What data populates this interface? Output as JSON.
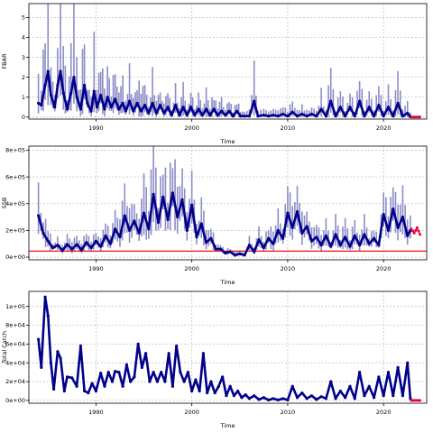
{
  "chart_data": [
    {
      "type": "line",
      "title": "",
      "xlabel": "Time",
      "ylabel": "FBAR",
      "xlim": [
        1983,
        2024.5
      ],
      "ylim": [
        -0.1,
        5.7
      ],
      "xticks": [
        1990,
        2000,
        2010,
        2020
      ],
      "yticks": [
        0,
        1,
        2,
        3,
        4,
        5
      ],
      "ytick_labels": [
        "0",
        "1",
        "2",
        "3",
        "4",
        "5"
      ],
      "grid": true,
      "colors": {
        "line": "#00008b",
        "band": "#8c8cc8",
        "projection": "#e8003a",
        "grid": "#c0c0c0"
      },
      "key_points": [
        [
          1984.0,
          0.7
        ],
        [
          1984.3,
          0.6
        ],
        [
          1984.7,
          1.6
        ],
        [
          1985.0,
          2.3
        ],
        [
          1985.3,
          1.1
        ],
        [
          1985.7,
          0.5
        ],
        [
          1986.0,
          1.6
        ],
        [
          1986.3,
          2.3
        ],
        [
          1986.6,
          1.2
        ],
        [
          1987.0,
          0.4
        ],
        [
          1987.4,
          1.2
        ],
        [
          1987.7,
          2.0
        ],
        [
          1988.0,
          1.0
        ],
        [
          1988.4,
          0.4
        ],
        [
          1988.8,
          1.6
        ],
        [
          1989.1,
          0.7
        ],
        [
          1989.5,
          0.3
        ],
        [
          1989.8,
          1.3
        ],
        [
          1990.1,
          0.5
        ],
        [
          1990.5,
          1.1
        ],
        [
          1990.9,
          0.4
        ],
        [
          1991.2,
          1.0
        ],
        [
          1991.6,
          0.5
        ],
        [
          1992.0,
          0.9
        ],
        [
          1992.4,
          0.4
        ],
        [
          1992.8,
          0.7
        ],
        [
          1993.1,
          0.3
        ],
        [
          1993.5,
          0.8
        ],
        [
          1993.9,
          0.3
        ],
        [
          1994.3,
          0.7
        ],
        [
          1994.7,
          0.3
        ],
        [
          1995.1,
          0.6
        ],
        [
          1995.5,
          0.2
        ],
        [
          1995.9,
          0.7
        ],
        [
          1996.3,
          0.2
        ],
        [
          1996.7,
          0.6
        ],
        [
          1997.1,
          0.2
        ],
        [
          1997.5,
          0.5
        ],
        [
          1997.9,
          0.1
        ],
        [
          1998.3,
          0.6
        ],
        [
          1998.7,
          0.1
        ],
        [
          1999.1,
          0.5
        ],
        [
          1999.5,
          0.1
        ],
        [
          1999.9,
          0.5
        ],
        [
          2000.3,
          0.1
        ],
        [
          2000.7,
          0.4
        ],
        [
          2001.1,
          0.1
        ],
        [
          2001.5,
          0.4
        ],
        [
          2001.9,
          0.1
        ],
        [
          2002.3,
          0.4
        ],
        [
          2002.7,
          0.1
        ],
        [
          2003.1,
          0.3
        ],
        [
          2003.5,
          0.1
        ],
        [
          2003.9,
          0.3
        ],
        [
          2004.3,
          0.05
        ],
        [
          2004.7,
          0.3
        ],
        [
          2005.1,
          0.05
        ],
        [
          2005.5,
          0.05
        ],
        [
          2006.0,
          0.05
        ],
        [
          2006.5,
          0.8
        ],
        [
          2006.9,
          0.05
        ],
        [
          2007.5,
          0.1
        ],
        [
          2008.0,
          0.05
        ],
        [
          2008.5,
          0.1
        ],
        [
          2009.0,
          0.05
        ],
        [
          2009.5,
          0.15
        ],
        [
          2010.0,
          0.05
        ],
        [
          2010.5,
          0.25
        ],
        [
          2011.0,
          0.05
        ],
        [
          2011.5,
          0.15
        ],
        [
          2012.0,
          0.05
        ],
        [
          2012.5,
          0.15
        ],
        [
          2013.0,
          0.05
        ],
        [
          2013.5,
          0.4
        ],
        [
          2014.0,
          0.05
        ],
        [
          2014.5,
          0.8
        ],
        [
          2015.0,
          0.05
        ],
        [
          2015.5,
          0.5
        ],
        [
          2016.0,
          0.05
        ],
        [
          2016.5,
          0.5
        ],
        [
          2017.0,
          0.05
        ],
        [
          2017.5,
          0.8
        ],
        [
          2018.0,
          0.05
        ],
        [
          2018.5,
          0.5
        ],
        [
          2019.0,
          0.05
        ],
        [
          2019.5,
          0.6
        ],
        [
          2020.0,
          0.05
        ],
        [
          2020.5,
          0.5
        ],
        [
          2021.0,
          0.05
        ],
        [
          2021.5,
          0.7
        ],
        [
          2022.0,
          0.05
        ],
        [
          2022.5,
          0.2
        ],
        [
          2022.8,
          0.02
        ]
      ],
      "projection": {
        "x": [
          2022.9,
          2023.8
        ],
        "y": [
          0.0,
          0.0
        ]
      }
    },
    {
      "type": "line",
      "title": "",
      "xlabel": "Time",
      "ylabel": "SSB",
      "xlim": [
        1983,
        2024.5
      ],
      "ylim": [
        -20000,
        830000
      ],
      "xticks": [
        1990,
        2000,
        2010,
        2020
      ],
      "yticks": [
        0,
        200000,
        400000,
        600000,
        800000
      ],
      "ytick_labels": [
        "0e+00",
        "2e+05",
        "4e+05",
        "6e+05",
        "8e+05"
      ],
      "grid": true,
      "reference_line": 45000,
      "colors": {
        "line": "#00008b",
        "band": "#8c8cc8",
        "projection": "#e8003a",
        "reference": "#ee1111",
        "grid": "#c0c0c0"
      },
      "key_points": [
        [
          1984.0,
          310000
        ],
        [
          1984.5,
          180000
        ],
        [
          1985.0,
          120000
        ],
        [
          1985.5,
          70000
        ],
        [
          1986.0,
          90000
        ],
        [
          1986.5,
          50000
        ],
        [
          1987.0,
          95000
        ],
        [
          1987.5,
          60000
        ],
        [
          1988.0,
          95000
        ],
        [
          1988.5,
          55000
        ],
        [
          1989.0,
          110000
        ],
        [
          1989.5,
          70000
        ],
        [
          1990.0,
          120000
        ],
        [
          1990.5,
          80000
        ],
        [
          1991.0,
          160000
        ],
        [
          1991.5,
          100000
        ],
        [
          1992.0,
          210000
        ],
        [
          1992.5,
          150000
        ],
        [
          1993.0,
          310000
        ],
        [
          1993.5,
          200000
        ],
        [
          1994.0,
          270000
        ],
        [
          1994.5,
          180000
        ],
        [
          1995.0,
          330000
        ],
        [
          1995.5,
          210000
        ],
        [
          1996.0,
          470000
        ],
        [
          1996.5,
          260000
        ],
        [
          1997.0,
          450000
        ],
        [
          1997.5,
          280000
        ],
        [
          1998.0,
          480000
        ],
        [
          1998.5,
          300000
        ],
        [
          1999.0,
          430000
        ],
        [
          1999.5,
          200000
        ],
        [
          2000.0,
          390000
        ],
        [
          2000.5,
          150000
        ],
        [
          2001.0,
          250000
        ],
        [
          2001.5,
          110000
        ],
        [
          2002.0,
          140000
        ],
        [
          2002.5,
          60000
        ],
        [
          2003.0,
          60000
        ],
        [
          2003.5,
          30000
        ],
        [
          2004.0,
          40000
        ],
        [
          2004.5,
          15000
        ],
        [
          2005.0,
          25000
        ],
        [
          2005.5,
          15000
        ],
        [
          2006.0,
          90000
        ],
        [
          2006.5,
          40000
        ],
        [
          2007.0,
          130000
        ],
        [
          2007.5,
          70000
        ],
        [
          2008.0,
          140000
        ],
        [
          2008.5,
          100000
        ],
        [
          2009.0,
          200000
        ],
        [
          2009.5,
          140000
        ],
        [
          2010.0,
          330000
        ],
        [
          2010.5,
          220000
        ],
        [
          2011.0,
          340000
        ],
        [
          2011.5,
          180000
        ],
        [
          2012.0,
          230000
        ],
        [
          2012.5,
          120000
        ],
        [
          2013.0,
          150000
        ],
        [
          2013.5,
          90000
        ],
        [
          2014.0,
          160000
        ],
        [
          2014.5,
          80000
        ],
        [
          2015.0,
          170000
        ],
        [
          2015.5,
          90000
        ],
        [
          2016.0,
          150000
        ],
        [
          2016.5,
          80000
        ],
        [
          2017.0,
          160000
        ],
        [
          2017.5,
          90000
        ],
        [
          2018.0,
          170000
        ],
        [
          2018.5,
          100000
        ],
        [
          2019.0,
          140000
        ],
        [
          2019.5,
          90000
        ],
        [
          2020.0,
          320000
        ],
        [
          2020.5,
          200000
        ],
        [
          2021.0,
          360000
        ],
        [
          2021.5,
          220000
        ],
        [
          2022.0,
          300000
        ],
        [
          2022.5,
          160000
        ],
        [
          2022.8,
          200000
        ]
      ],
      "projection": {
        "x": [
          2022.9,
          2023.2,
          2023.5,
          2023.8
        ],
        "y": [
          210000,
          180000,
          220000,
          170000
        ]
      }
    },
    {
      "type": "line",
      "title": "",
      "xlabel": "Time",
      "ylabel": "Total Catch",
      "xlim": [
        1983,
        2024.5
      ],
      "ylim": [
        -3000,
        116000
      ],
      "xticks": [
        1990,
        2000,
        2010,
        2020
      ],
      "yticks": [
        0,
        20000,
        40000,
        60000,
        80000,
        100000
      ],
      "ytick_labels": [
        "0e+00",
        "2e+04",
        "4e+04",
        "6e+04",
        "8e+04",
        "1e+05"
      ],
      "grid": true,
      "colors": {
        "line": "#00008b",
        "projection": "#e8003a",
        "grid": "#c0c0c0"
      },
      "key_points": [
        [
          1984.0,
          65000
        ],
        [
          1984.3,
          35000
        ],
        [
          1984.7,
          110000
        ],
        [
          1985.0,
          90000
        ],
        [
          1985.3,
          40000
        ],
        [
          1985.6,
          12000
        ],
        [
          1986.0,
          52000
        ],
        [
          1986.3,
          45000
        ],
        [
          1986.7,
          10000
        ],
        [
          1987.0,
          25000
        ],
        [
          1987.5,
          24000
        ],
        [
          1988.0,
          15000
        ],
        [
          1988.4,
          58000
        ],
        [
          1988.8,
          10000
        ],
        [
          1989.2,
          8000
        ],
        [
          1989.6,
          18000
        ],
        [
          1990.0,
          10000
        ],
        [
          1990.5,
          29000
        ],
        [
          1990.9,
          15000
        ],
        [
          1991.3,
          30000
        ],
        [
          1991.7,
          20000
        ],
        [
          1992.0,
          31000
        ],
        [
          1992.4,
          30000
        ],
        [
          1992.8,
          15000
        ],
        [
          1993.2,
          38000
        ],
        [
          1993.6,
          20000
        ],
        [
          1994.0,
          25000
        ],
        [
          1994.4,
          60000
        ],
        [
          1994.8,
          35000
        ],
        [
          1995.2,
          50000
        ],
        [
          1995.6,
          20000
        ],
        [
          1996.0,
          30000
        ],
        [
          1996.4,
          20000
        ],
        [
          1996.8,
          30000
        ],
        [
          1997.2,
          20000
        ],
        [
          1997.6,
          50000
        ],
        [
          1998.0,
          15000
        ],
        [
          1998.4,
          58000
        ],
        [
          1998.8,
          30000
        ],
        [
          1999.2,
          20000
        ],
        [
          1999.6,
          30000
        ],
        [
          2000.0,
          10000
        ],
        [
          2000.4,
          22000
        ],
        [
          2000.8,
          10000
        ],
        [
          2001.2,
          50000
        ],
        [
          2001.6,
          8000
        ],
        [
          2002.0,
          20000
        ],
        [
          2002.4,
          8000
        ],
        [
          2002.8,
          15000
        ],
        [
          2003.2,
          25000
        ],
        [
          2003.6,
          5000
        ],
        [
          2004.0,
          15000
        ],
        [
          2004.4,
          5000
        ],
        [
          2004.8,
          10000
        ],
        [
          2005.2,
          3000
        ],
        [
          2005.6,
          6000
        ],
        [
          2006.0,
          2000
        ],
        [
          2006.5,
          5000
        ],
        [
          2007.0,
          1000
        ],
        [
          2007.5,
          3000
        ],
        [
          2008.0,
          500
        ],
        [
          2008.5,
          2000
        ],
        [
          2009.0,
          500
        ],
        [
          2009.5,
          2000
        ],
        [
          2010.0,
          500
        ],
        [
          2010.5,
          15000
        ],
        [
          2011.0,
          3000
        ],
        [
          2011.5,
          8000
        ],
        [
          2012.0,
          2000
        ],
        [
          2012.5,
          5000
        ],
        [
          2013.0,
          1000
        ],
        [
          2013.5,
          4000
        ],
        [
          2014.0,
          2000
        ],
        [
          2014.5,
          20000
        ],
        [
          2015.0,
          2000
        ],
        [
          2015.5,
          10000
        ],
        [
          2016.0,
          3000
        ],
        [
          2016.5,
          15000
        ],
        [
          2017.0,
          2000
        ],
        [
          2017.5,
          30000
        ],
        [
          2018.0,
          5000
        ],
        [
          2018.5,
          15000
        ],
        [
          2019.0,
          3000
        ],
        [
          2019.5,
          25000
        ],
        [
          2020.0,
          5000
        ],
        [
          2020.5,
          30000
        ],
        [
          2021.0,
          5000
        ],
        [
          2021.5,
          35000
        ],
        [
          2022.0,
          5000
        ],
        [
          2022.5,
          40000
        ],
        [
          2022.8,
          2000
        ]
      ],
      "projection": {
        "x": [
          2022.9,
          2023.8
        ],
        "y": [
          0,
          0
        ]
      }
    }
  ]
}
